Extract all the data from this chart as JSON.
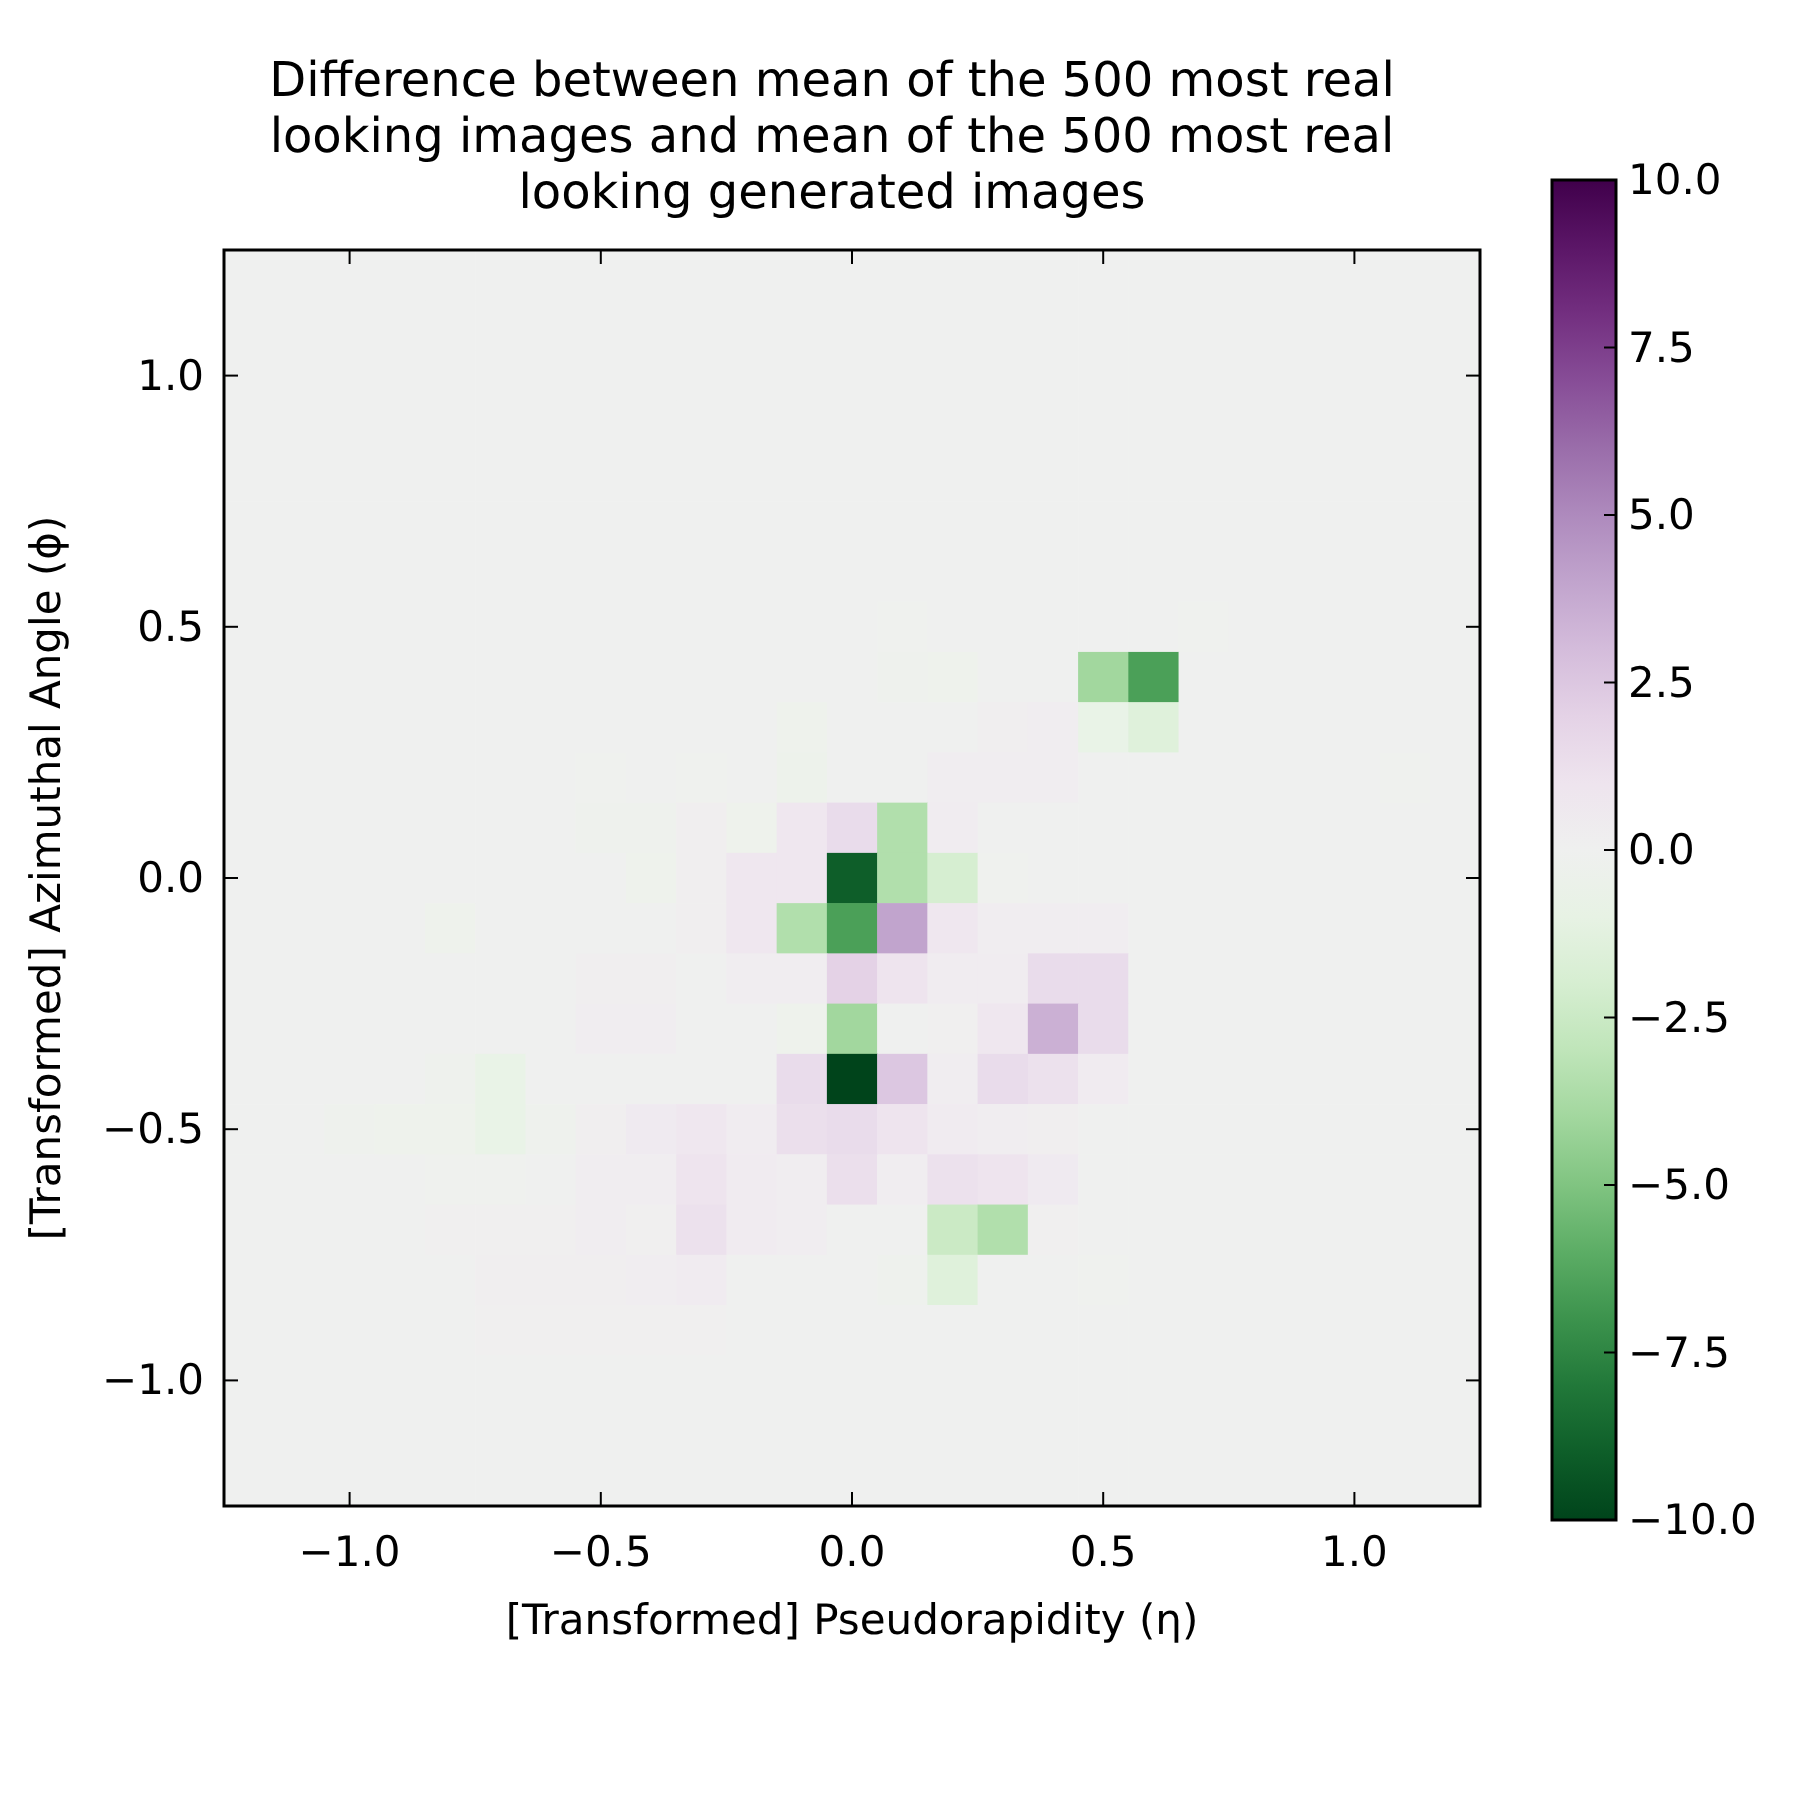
{
  "chart_data": {
    "type": "heatmap",
    "title": "Difference between mean of the 500 most real looking images and mean of the 500 most real looking generated images",
    "xlabel": "[Transformed] Pseudorapidity (η)",
    "ylabel": "[Transformed] Azimuthal Angle (ϕ)",
    "x": [
      -1.2,
      -1.1,
      -1,
      -0.9,
      -0.8,
      -0.7,
      -0.6,
      -0.5,
      -0.4,
      -0.3,
      -0.2,
      -0.1,
      0,
      0.1,
      0.2,
      0.3,
      0.4,
      0.5,
      0.6,
      0.7,
      0.8,
      0.9,
      1,
      1.1,
      1.2
    ],
    "xlim": [
      -1.25,
      1.25
    ],
    "ylim": [
      -1.25,
      1.25
    ],
    "xticks": [
      {
        "value": -1,
        "label": "−1.0"
      },
      {
        "value": -0.5,
        "label": "−0.5"
      },
      {
        "value": 0,
        "label": "0.0"
      },
      {
        "value": 0.5,
        "label": "0.5"
      },
      {
        "value": 1,
        "label": "1.0"
      }
    ],
    "yticks": [
      {
        "value": -1,
        "label": "−1.0"
      },
      {
        "value": -0.5,
        "label": "−0.5"
      },
      {
        "value": 0,
        "label": "0.0"
      },
      {
        "value": 0.5,
        "label": "0.5"
      },
      {
        "value": 1,
        "label": "1.0"
      }
    ],
    "clim": [
      -10,
      10
    ],
    "cticks": [
      {
        "value": -10,
        "label": "−10.0"
      },
      {
        "value": -7.5,
        "label": "−7.5"
      },
      {
        "value": -5,
        "label": "−5.0"
      },
      {
        "value": -2.5,
        "label": "−2.5"
      },
      {
        "value": 0,
        "label": "0.0"
      },
      {
        "value": 2.5,
        "label": "2.5"
      },
      {
        "value": 5,
        "label": "5.0"
      },
      {
        "value": 7.5,
        "label": "7.5"
      },
      {
        "value": 10,
        "label": "10.0"
      }
    ],
    "cells": [
      [
        0,
        0,
        0,
        0,
        0,
        0,
        0,
        0,
        0,
        0,
        0,
        0,
        0,
        0,
        0,
        0,
        0,
        0,
        0,
        0,
        0,
        0,
        0,
        0,
        0
      ],
      [
        0,
        0,
        0,
        0,
        0,
        0,
        0,
        0,
        0,
        0,
        0,
        0,
        0,
        0,
        0,
        0,
        0,
        0,
        0,
        0,
        0,
        0,
        0,
        0,
        0
      ],
      [
        0,
        0,
        0,
        0,
        0,
        0,
        0,
        0,
        0,
        0,
        0,
        0,
        0,
        0,
        0,
        0,
        0,
        0,
        0,
        0,
        0,
        0,
        0,
        0,
        0
      ],
      [
        0,
        0,
        0,
        0,
        0,
        0,
        0,
        0,
        0,
        0,
        0,
        0,
        0,
        0,
        0,
        0,
        0,
        0,
        0,
        0,
        0,
        0,
        0,
        0,
        0
      ],
      [
        0,
        0,
        0,
        0,
        0,
        0,
        0,
        0,
        0,
        0,
        0,
        0,
        0,
        0,
        0,
        0,
        0,
        0,
        0,
        0,
        0,
        0,
        0,
        0,
        0
      ],
      [
        0,
        0,
        0,
        0,
        0,
        0,
        0,
        0,
        0,
        0,
        0,
        0,
        0,
        0,
        0,
        0,
        0,
        0,
        0,
        0,
        0,
        0,
        0,
        0,
        0
      ],
      [
        0,
        0,
        0,
        0,
        0,
        0,
        0,
        0,
        0,
        0,
        0,
        0,
        0,
        0,
        0,
        0,
        0,
        0,
        0,
        0,
        0,
        0,
        0,
        0,
        0
      ],
      [
        0,
        0,
        0,
        0,
        0,
        0,
        0,
        0,
        0,
        0,
        0,
        0,
        0,
        -0.1,
        0,
        0,
        0,
        0,
        0,
        -0.1,
        0,
        0,
        0,
        0,
        0
      ],
      [
        0,
        0,
        0,
        0,
        0,
        0,
        0,
        0,
        0,
        0,
        0,
        0,
        0,
        -0.2,
        -0.3,
        0,
        0,
        -4,
        -6.5,
        0,
        0,
        0,
        0,
        0,
        0
      ],
      [
        0,
        0,
        0,
        0,
        0,
        0,
        0,
        0,
        0,
        0,
        0,
        -0.3,
        0,
        0,
        0,
        0.2,
        0.3,
        -0.8,
        -1.5,
        0,
        0,
        0,
        0,
        0,
        0
      ],
      [
        0,
        0,
        0,
        0,
        0,
        0,
        0,
        -0.1,
        0,
        -0.1,
        0,
        -0.4,
        0,
        0,
        0.3,
        0.3,
        0.3,
        0,
        0,
        0,
        0,
        0,
        0,
        -0.1,
        0
      ],
      [
        0,
        0,
        0,
        0,
        0,
        0,
        0,
        -0.2,
        -0.2,
        0.2,
        -0.3,
        0.8,
        1.5,
        -3.5,
        0.4,
        0,
        0,
        0,
        0,
        0,
        0,
        0,
        0,
        0,
        0
      ],
      [
        0,
        0,
        0,
        0,
        0,
        0,
        0,
        0,
        -0.3,
        0.2,
        0.8,
        0.8,
        -9,
        -3.5,
        -2,
        -0.1,
        0,
        0,
        0,
        0,
        0,
        0,
        0,
        0,
        0
      ],
      [
        0,
        0,
        0,
        0,
        -0.3,
        0,
        0,
        0,
        0,
        0.2,
        0.8,
        -3.5,
        -6.5,
        4,
        0.8,
        0.3,
        0.3,
        0.3,
        0,
        0,
        0,
        0,
        0,
        0,
        0
      ],
      [
        0,
        0,
        0,
        0,
        0,
        0,
        0,
        0.2,
        0.2,
        0,
        0.3,
        0.3,
        2,
        1,
        0.4,
        0.4,
        1.5,
        1.5,
        0,
        0,
        0,
        0,
        0,
        0,
        0
      ],
      [
        0,
        0,
        0,
        0,
        0,
        0,
        0,
        0.3,
        0.3,
        0,
        0,
        -0.3,
        -4,
        0,
        0.1,
        0.8,
        3.5,
        1.5,
        0,
        0,
        0,
        0,
        0,
        0,
        0
      ],
      [
        0,
        0,
        0,
        0,
        -0.2,
        -0.8,
        0,
        0,
        0,
        0,
        0,
        1.5,
        -10,
        2.5,
        0.3,
        1.5,
        1.2,
        0.5,
        0,
        0,
        0,
        0,
        0,
        0,
        0
      ],
      [
        0,
        0,
        -0.2,
        -0.3,
        -0.3,
        -0.8,
        -0.2,
        0.2,
        0.6,
        0.8,
        0.4,
        1.3,
        1.5,
        1,
        0.5,
        0.3,
        0.2,
        0,
        0,
        0,
        0,
        0,
        0,
        0,
        0
      ],
      [
        0,
        0,
        0,
        0,
        -0.1,
        -0.1,
        0,
        0.3,
        0.3,
        1,
        0.5,
        0.3,
        1.3,
        0.3,
        1.2,
        1,
        0.6,
        0,
        0,
        0,
        0,
        0,
        0,
        0,
        0
      ],
      [
        0,
        0,
        0,
        0,
        0.1,
        0.1,
        0.1,
        0.3,
        0.1,
        1.2,
        0.5,
        0.3,
        0,
        0,
        -2.5,
        -3.5,
        0.1,
        0,
        0,
        0,
        0,
        0,
        0,
        0,
        0
      ],
      [
        0,
        0,
        0,
        0,
        0,
        0.2,
        0.2,
        0.2,
        0.3,
        0.5,
        0,
        0,
        0,
        -0.2,
        -1.5,
        0,
        0,
        -0.1,
        0,
        0,
        0,
        0,
        0,
        0,
        0
      ],
      [
        0,
        0,
        0,
        0,
        0,
        0.1,
        0.1,
        0.1,
        0.1,
        0.1,
        0,
        0,
        0,
        0,
        0,
        0,
        0,
        0,
        0,
        0,
        0,
        0,
        0,
        0,
        0
      ],
      [
        0,
        0,
        0,
        0,
        0,
        0,
        0,
        0,
        0,
        0,
        0,
        0,
        0,
        0,
        0,
        0,
        0,
        0,
        0,
        0,
        0,
        0,
        0,
        0,
        0
      ],
      [
        0,
        0,
        0,
        0,
        0,
        0,
        0,
        0,
        0,
        0,
        0,
        0,
        0,
        0,
        0,
        0,
        0,
        0,
        0,
        0,
        0,
        0,
        0,
        0,
        0
      ],
      [
        0,
        0,
        0,
        0,
        0,
        0,
        0,
        0,
        0,
        0,
        0,
        0,
        0,
        0,
        0,
        0,
        0,
        0,
        0,
        0,
        0,
        0,
        0,
        0,
        0
      ]
    ]
  }
}
